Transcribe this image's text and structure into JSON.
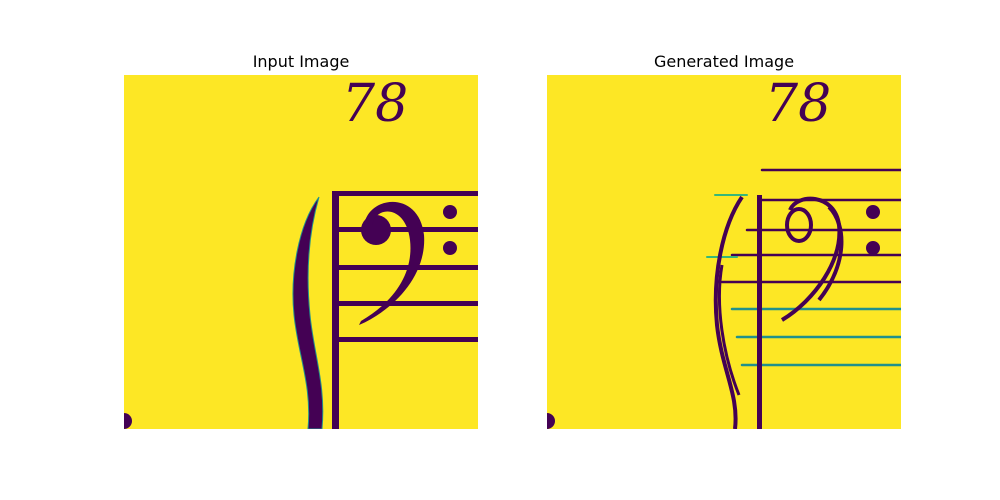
{
  "figure": {
    "panels": [
      {
        "title": "Input Image"
      },
      {
        "title": "Generated Image"
      }
    ],
    "page_number_text": "78",
    "colors": {
      "background": "#ffffff",
      "image_bg": "#fde725",
      "ink": "#440154",
      "edge": "#21918c",
      "highlight": "#35b779"
    }
  }
}
